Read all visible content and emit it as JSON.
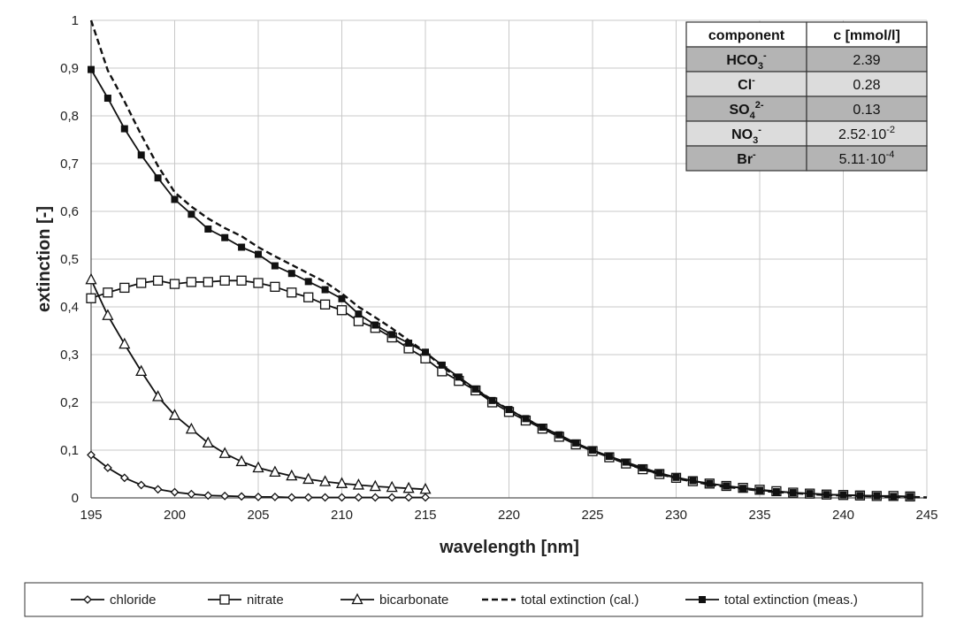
{
  "chart_data": {
    "type": "line",
    "xlabel": "wavelength [nm]",
    "ylabel": "extinction [-]",
    "xlim": [
      195,
      245
    ],
    "ylim": [
      0,
      1
    ],
    "x_ticks": [
      "195",
      "200",
      "205",
      "210",
      "215",
      "220",
      "225",
      "230",
      "235",
      "240",
      "245"
    ],
    "y_ticks": [
      "0",
      "0,1",
      "0,2",
      "0,3",
      "0,4",
      "0,5",
      "0,6",
      "0,7",
      "0,8",
      "0,9",
      "1"
    ],
    "grid": true,
    "legend_position": "bottom",
    "series": [
      {
        "name": "chloride",
        "marker": "diamond",
        "line": "solid",
        "x": [
          195,
          196,
          197,
          198,
          199,
          200,
          201,
          202,
          203,
          204,
          205,
          206,
          207,
          208,
          209,
          210,
          211,
          212,
          213,
          214,
          215
        ],
        "y": [
          0.09,
          0.063,
          0.042,
          0.027,
          0.018,
          0.012,
          0.008,
          0.005,
          0.004,
          0.003,
          0.002,
          0.002,
          0.001,
          0.001,
          0.001,
          0.001,
          0.001,
          0.001,
          0.001,
          0.001,
          0.001
        ]
      },
      {
        "name": "nitrate",
        "marker": "open-square",
        "line": "solid",
        "x": [
          195,
          196,
          197,
          198,
          199,
          200,
          201,
          202,
          203,
          204,
          205,
          206,
          207,
          208,
          209,
          210,
          211,
          212,
          213,
          214,
          215,
          216,
          217,
          218,
          219,
          220,
          221,
          222,
          223,
          224,
          225,
          226,
          227,
          228,
          229,
          230,
          231,
          232,
          233,
          234,
          235,
          236,
          237,
          238,
          239,
          240,
          241,
          242,
          243,
          244
        ],
        "y": [
          0.418,
          0.43,
          0.44,
          0.45,
          0.455,
          0.448,
          0.452,
          0.452,
          0.455,
          0.455,
          0.45,
          0.442,
          0.43,
          0.42,
          0.405,
          0.393,
          0.37,
          0.356,
          0.336,
          0.313,
          0.292,
          0.265,
          0.245,
          0.225,
          0.2,
          0.18,
          0.162,
          0.145,
          0.128,
          0.112,
          0.098,
          0.085,
          0.072,
          0.06,
          0.05,
          0.042,
          0.035,
          0.03,
          0.025,
          0.021,
          0.017,
          0.014,
          0.011,
          0.009,
          0.007,
          0.006,
          0.005,
          0.004,
          0.004,
          0.003
        ]
      },
      {
        "name": "bicarbonate",
        "marker": "open-triangle",
        "line": "solid",
        "x": [
          195,
          196,
          197,
          198,
          199,
          200,
          201,
          202,
          203,
          204,
          205,
          206,
          207,
          208,
          209,
          210,
          211,
          212,
          213,
          214,
          215
        ],
        "y": [
          0.457,
          0.382,
          0.322,
          0.265,
          0.212,
          0.173,
          0.144,
          0.115,
          0.093,
          0.076,
          0.063,
          0.054,
          0.046,
          0.039,
          0.034,
          0.03,
          0.027,
          0.024,
          0.022,
          0.02,
          0.018
        ]
      },
      {
        "name": "total extinction (cal.)",
        "marker": "none",
        "line": "dashed",
        "x": [
          195,
          196,
          197,
          198,
          199,
          200,
          201,
          202,
          203,
          204,
          205,
          206,
          207,
          208,
          209,
          210,
          211,
          212,
          213,
          214,
          215,
          216,
          217,
          218,
          219,
          220,
          221,
          222,
          223,
          224,
          225,
          226,
          227,
          228,
          229,
          230,
          231,
          232,
          233,
          234,
          235,
          236,
          237,
          238,
          239,
          240,
          241,
          242,
          243,
          244,
          245
        ],
        "y": [
          1.0,
          0.895,
          0.83,
          0.76,
          0.695,
          0.64,
          0.61,
          0.585,
          0.565,
          0.548,
          0.525,
          0.506,
          0.488,
          0.47,
          0.452,
          0.428,
          0.4,
          0.378,
          0.355,
          0.33,
          0.305,
          0.275,
          0.25,
          0.228,
          0.205,
          0.185,
          0.166,
          0.148,
          0.131,
          0.114,
          0.099,
          0.085,
          0.072,
          0.06,
          0.05,
          0.041,
          0.034,
          0.028,
          0.023,
          0.019,
          0.015,
          0.012,
          0.01,
          0.008,
          0.006,
          0.005,
          0.004,
          0.003,
          0.002,
          0.002,
          0.001
        ]
      },
      {
        "name": "total extinction (meas.)",
        "marker": "filled-square",
        "line": "solid",
        "x": [
          195,
          196,
          197,
          198,
          199,
          200,
          201,
          202,
          203,
          204,
          205,
          206,
          207,
          208,
          209,
          210,
          211,
          212,
          213,
          214,
          215,
          216,
          217,
          218,
          219,
          220,
          221,
          222,
          223,
          224,
          225,
          226,
          227,
          228,
          229,
          230,
          231,
          232,
          233,
          234,
          235,
          236,
          237,
          238,
          239,
          240,
          241,
          242,
          243,
          244
        ],
        "y": [
          0.897,
          0.837,
          0.773,
          0.718,
          0.67,
          0.625,
          0.594,
          0.563,
          0.545,
          0.525,
          0.51,
          0.486,
          0.47,
          0.453,
          0.436,
          0.417,
          0.385,
          0.362,
          0.342,
          0.324,
          0.305,
          0.278,
          0.253,
          0.228,
          0.204,
          0.185,
          0.166,
          0.148,
          0.132,
          0.115,
          0.1,
          0.087,
          0.075,
          0.063,
          0.052,
          0.043,
          0.036,
          0.03,
          0.025,
          0.02,
          0.016,
          0.013,
          0.011,
          0.009,
          0.007,
          0.006,
          0.005,
          0.004,
          0.003,
          0.003
        ]
      }
    ]
  },
  "table": {
    "headers": [
      "component",
      "c [mmol/l]"
    ],
    "rows": [
      {
        "base": "HCO",
        "sub": "3",
        "sup": "-",
        "value": "2.39"
      },
      {
        "base": "Cl",
        "sub": "",
        "sup": "-",
        "value": "0.28"
      },
      {
        "base": "SO",
        "sub": "4",
        "sup": "2-",
        "value": "0.13"
      },
      {
        "base": "NO",
        "sub": "3",
        "sup": "-",
        "value": "2.52·10",
        "exp": "-2"
      },
      {
        "base": "Br",
        "sub": "",
        "sup": "-",
        "value": "5.11·10",
        "exp": "-4"
      }
    ]
  }
}
